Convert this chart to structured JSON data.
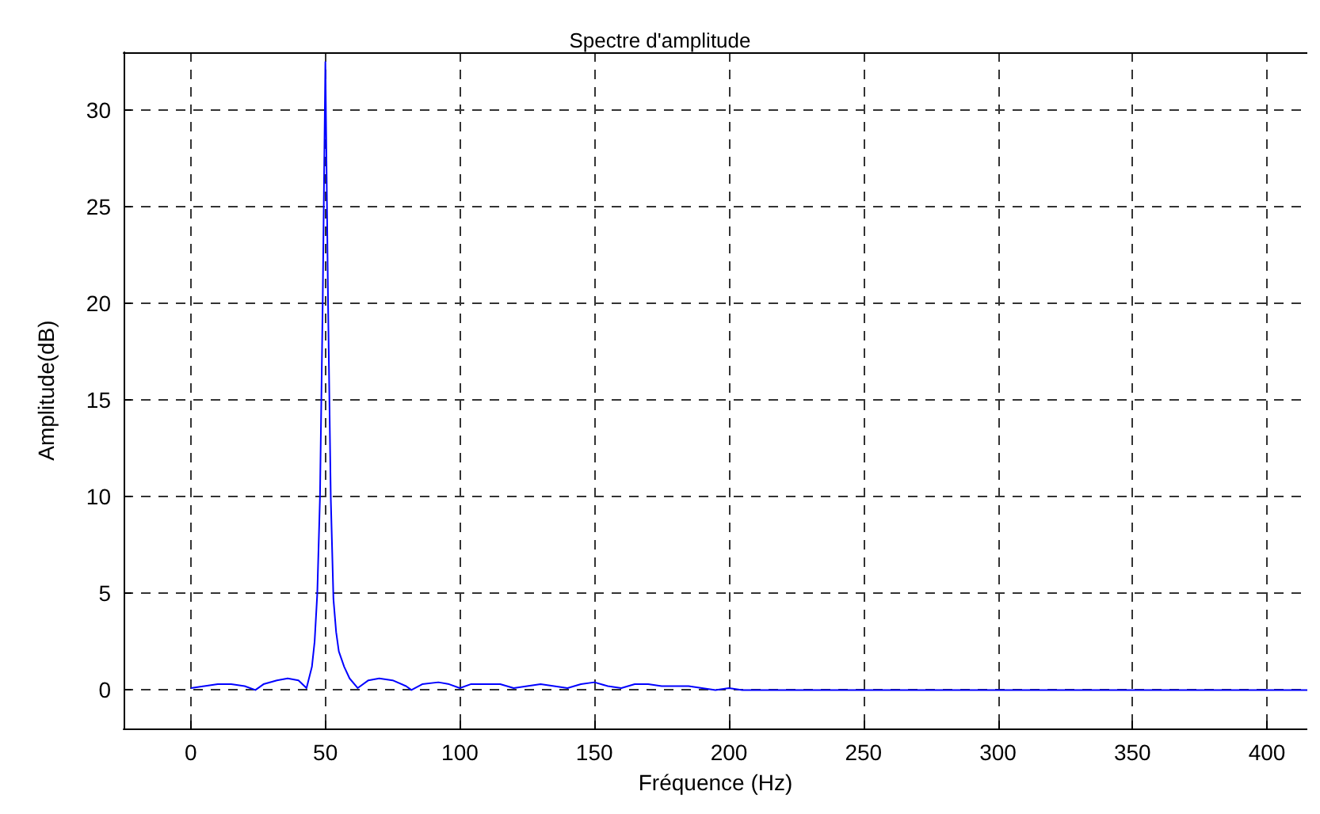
{
  "chart_data": {
    "type": "line",
    "title": "Spectre d'amplitude",
    "xlabel": "Fréquence (Hz)",
    "ylabel": "Amplitude(dB)",
    "series": [
      {
        "color": "#0000ff",
        "x": [
          0,
          5,
          10,
          15,
          20,
          24,
          27,
          32,
          36,
          40,
          43,
          45,
          46,
          47,
          48,
          49,
          50,
          51,
          52,
          53,
          54,
          55,
          57,
          59,
          62,
          66,
          70,
          75,
          80,
          82,
          86,
          92,
          96,
          100,
          104,
          110,
          115,
          120,
          125,
          130,
          135,
          140,
          145,
          150,
          155,
          160,
          165,
          170,
          175,
          180,
          185,
          190,
          195,
          200,
          205,
          210,
          215,
          220,
          250,
          300,
          350,
          400,
          415
        ],
        "values": [
          0.1,
          0.2,
          0.3,
          0.3,
          0.2,
          0,
          0.3,
          0.5,
          0.6,
          0.5,
          0.1,
          1.2,
          2.5,
          5,
          10,
          20,
          32.5,
          20,
          10,
          4.7,
          3,
          2,
          1.2,
          0.6,
          0.1,
          0.5,
          0.6,
          0.5,
          0.2,
          0,
          0.3,
          0.4,
          0.3,
          0.1,
          0.3,
          0.3,
          0.3,
          0.1,
          0.2,
          0.3,
          0.2,
          0.1,
          0.3,
          0.4,
          0.2,
          0.1,
          0.3,
          0.3,
          0.2,
          0.2,
          0.2,
          0.1,
          0,
          0.1,
          0,
          0,
          0,
          0,
          0,
          0,
          0,
          0,
          0
        ]
      }
    ],
    "xlim": [
      -25,
      415
    ],
    "ylim": [
      -2,
      33
    ],
    "xticks": [
      0,
      50,
      100,
      150,
      200,
      250,
      300,
      350,
      400
    ],
    "yticks": [
      0,
      5,
      10,
      15,
      20,
      25,
      30
    ],
    "grid": true,
    "marker": "none",
    "line_style": "solid"
  }
}
